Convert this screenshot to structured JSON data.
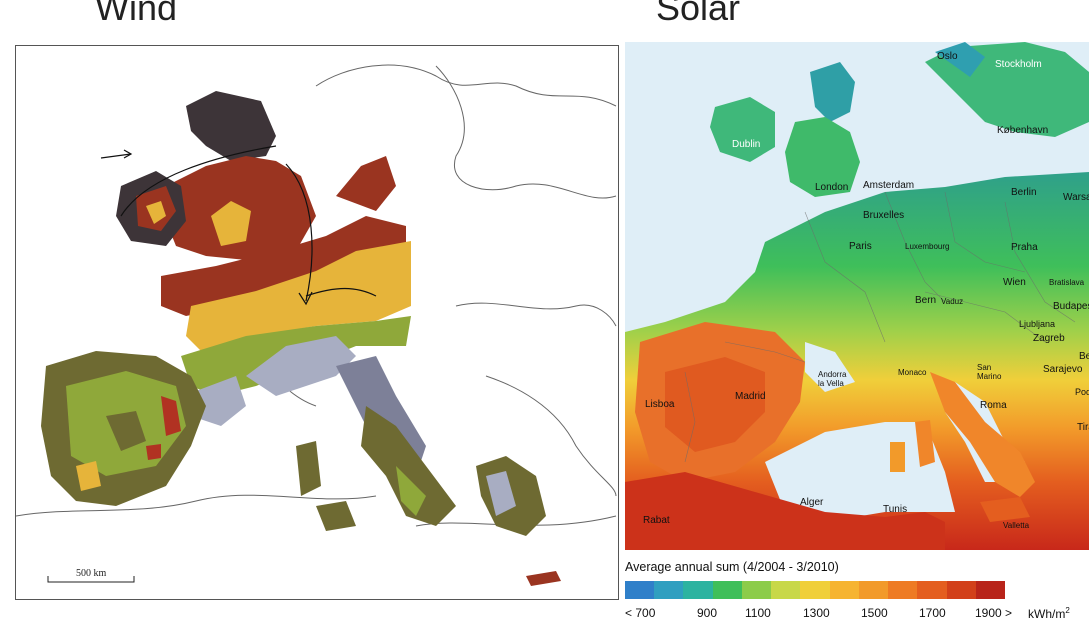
{
  "titles": {
    "wind": "Wind",
    "solar": "Solar"
  },
  "wind_map": {
    "scale_label": "500 km"
  },
  "solar_map": {
    "cities": [
      "Oslo",
      "Stockholm",
      "København",
      "Dublin",
      "London",
      "Amsterdam",
      "Berlin",
      "Warsa",
      "Bruxelles",
      "Paris",
      "Luxembourg",
      "Praha",
      "Wien",
      "Bratislava",
      "Budapest",
      "Bern",
      "Vaduz",
      "Ljubljana",
      "Zagreb",
      "Beo",
      "Sarajevo",
      "Podgori",
      "San Marino",
      "Monaco",
      "Andorra la Vella",
      "Madrid",
      "Lisboa",
      "Roma",
      "Tira",
      "Alger",
      "Tunis",
      "Valletta",
      "Rabat"
    ]
  },
  "legend": {
    "title": "Average annual sum (4/2004 - 3/2010)",
    "colors": [
      "#2f7fc9",
      "#2f9fc0",
      "#2cb3a0",
      "#3fbf5a",
      "#8ccc4a",
      "#c8d848",
      "#f0cf3a",
      "#f6b431",
      "#f29a2a",
      "#ee7b24",
      "#e45e1f",
      "#d2401a",
      "#b8241a"
    ],
    "ticks": [
      "< 700",
      "900",
      "1100",
      "1300",
      "1500",
      "1700",
      "1900 >"
    ],
    "unit": "kWh/m",
    "unit_sup": "2"
  }
}
